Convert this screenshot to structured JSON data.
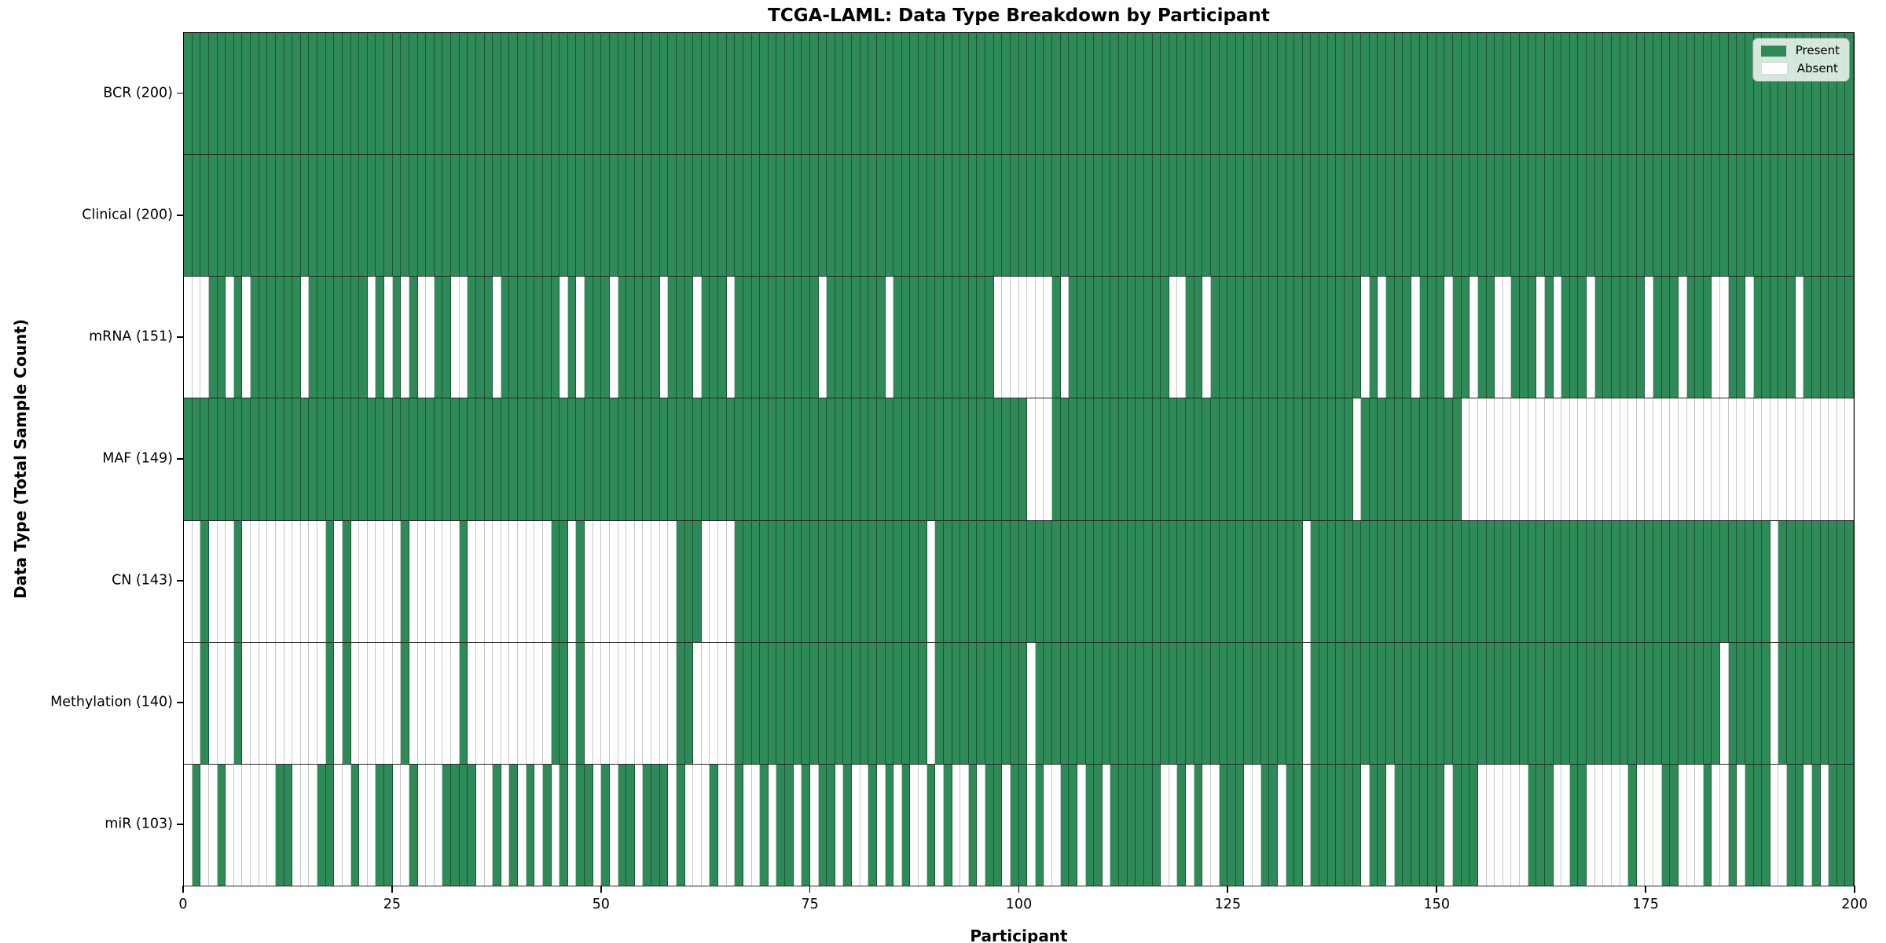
{
  "chart_data": {
    "type": "heatmap",
    "title": "TCGA-LAML: Data Type Breakdown by Participant",
    "xlabel": "Participant",
    "ylabel": "Data Type (Total Sample Count)",
    "x_ticks": [
      0,
      25,
      50,
      75,
      100,
      125,
      150,
      175,
      200
    ],
    "x_range": [
      0,
      200
    ],
    "n_participants": 200,
    "grid": "cell-edges",
    "legend": {
      "position": "upper right",
      "present_label": "Present",
      "absent_label": "Absent"
    },
    "colors": {
      "present": "#2e8b57",
      "absent": "#ffffff",
      "cell_edge": "rgba(0,0,0,0.5)",
      "row_separator": "#000000"
    },
    "rows": [
      {
        "label": "BCR",
        "display": "BCR (200)",
        "present_count": 200,
        "absent": []
      },
      {
        "label": "Clinical",
        "display": "Clinical (200)",
        "present_count": 200,
        "absent": []
      },
      {
        "label": "mRNA",
        "display": "mRNA (151)",
        "present_count": 151,
        "absent": [
          0,
          1,
          2,
          5,
          7,
          14,
          22,
          24,
          26,
          28,
          29,
          32,
          33,
          37,
          45,
          47,
          51,
          57,
          61,
          65,
          76,
          84,
          97,
          98,
          99,
          100,
          101,
          102,
          103,
          105,
          118,
          119,
          122,
          141,
          143,
          147,
          151,
          154,
          157,
          158,
          162,
          164,
          168,
          175,
          179,
          183,
          184,
          187,
          193
        ]
      },
      {
        "label": "MAF",
        "display": "MAF (149)",
        "present_count": 149,
        "absent": [
          101,
          102,
          103,
          140,
          153,
          154,
          155,
          156,
          157,
          158,
          159,
          160,
          161,
          162,
          163,
          164,
          165,
          166,
          167,
          168,
          169,
          170,
          171,
          172,
          173,
          174,
          175,
          176,
          177,
          178,
          179,
          180,
          181,
          182,
          183,
          184,
          185,
          186,
          187,
          188,
          189,
          190,
          191,
          192,
          193,
          194,
          195,
          196,
          197,
          198,
          199
        ]
      },
      {
        "label": "CN",
        "display": "CN (143)",
        "present_count": 143,
        "absent": [
          0,
          1,
          3,
          4,
          5,
          7,
          8,
          9,
          10,
          11,
          12,
          13,
          14,
          15,
          16,
          18,
          20,
          21,
          22,
          23,
          24,
          25,
          27,
          28,
          29,
          30,
          31,
          32,
          34,
          35,
          36,
          37,
          38,
          39,
          40,
          41,
          42,
          43,
          46,
          48,
          49,
          50,
          51,
          52,
          53,
          54,
          55,
          56,
          57,
          58,
          62,
          63,
          64,
          65,
          89,
          134,
          190
        ]
      },
      {
        "label": "Methylation",
        "display": "Methylation (140)",
        "present_count": 140,
        "absent": [
          0,
          1,
          3,
          4,
          5,
          7,
          8,
          9,
          10,
          11,
          12,
          13,
          14,
          15,
          16,
          18,
          20,
          21,
          22,
          23,
          24,
          25,
          27,
          28,
          29,
          30,
          31,
          32,
          34,
          35,
          36,
          37,
          38,
          39,
          40,
          41,
          42,
          43,
          46,
          48,
          49,
          50,
          51,
          52,
          53,
          54,
          55,
          56,
          57,
          58,
          61,
          62,
          63,
          64,
          65,
          89,
          101,
          134,
          184,
          190
        ]
      },
      {
        "label": "miR",
        "display": "miR (103)",
        "present_count": 103,
        "absent": [
          0,
          2,
          3,
          5,
          6,
          7,
          8,
          9,
          10,
          13,
          14,
          15,
          18,
          19,
          21,
          22,
          25,
          26,
          28,
          29,
          30,
          35,
          36,
          38,
          40,
          42,
          44,
          46,
          49,
          51,
          54,
          58,
          60,
          61,
          62,
          64,
          65,
          67,
          68,
          70,
          73,
          75,
          78,
          80,
          81,
          83,
          85,
          87,
          88,
          90,
          92,
          93,
          95,
          98,
          101,
          103,
          104,
          107,
          110,
          117,
          118,
          120,
          122,
          123,
          127,
          128,
          131,
          134,
          141,
          144,
          151,
          155,
          156,
          157,
          158,
          159,
          160,
          164,
          165,
          168,
          169,
          170,
          171,
          172,
          174,
          175,
          176,
          179,
          180,
          181,
          183,
          184,
          186,
          190,
          191,
          194,
          196
        ]
      }
    ]
  }
}
